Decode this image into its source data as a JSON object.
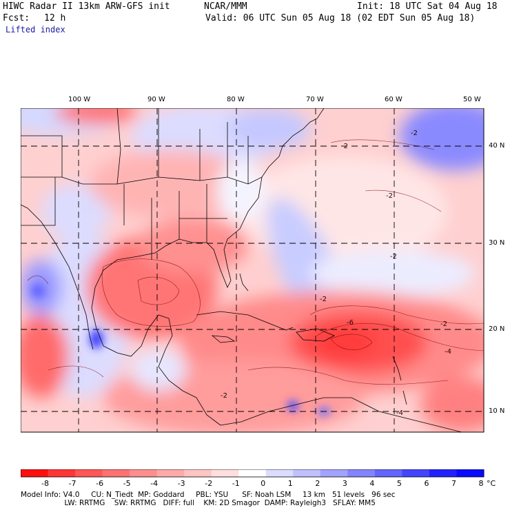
{
  "header": {
    "model": "HIWC Radar II 13km ARW-GFS init",
    "org": "NCAR/MMM",
    "init": "Init: 18 UTC Sat 04 Aug 18",
    "fcst_label": "Fcst:",
    "fcst_value": "12 h",
    "valid": "Valid: 06 UTC Sun 05 Aug 18 (02 EDT Sun 05 Aug 18)",
    "field": "Lifted index"
  },
  "map": {
    "lon_labels": [
      "100 W",
      "90 W",
      "80 W",
      "70 W",
      "60 W",
      "50 W"
    ],
    "lat_labels": [
      "40 N",
      "30 N",
      "20 N",
      "10 N"
    ],
    "contour_labels": [
      "-2",
      "-2",
      "-2",
      "-2",
      "-2",
      "-4",
      "-6",
      "-2",
      "-4",
      "-2"
    ]
  },
  "colorbar": {
    "labels": [
      "-8",
      "-7",
      "-6",
      "-5",
      "-4",
      "-3",
      "-2",
      "-1",
      "0",
      "1",
      "2",
      "3",
      "4",
      "5",
      "6",
      "7",
      "8"
    ],
    "unit": "°C",
    "colors": [
      "#ff1010",
      "#ff3636",
      "#ff5656",
      "#ff7272",
      "#ff8e8e",
      "#ffaaaa",
      "#ffc4c4",
      "#ffdede",
      "#ffffff",
      "#dcdcff",
      "#c0c0ff",
      "#a2a2ff",
      "#8484ff",
      "#6464ff",
      "#4444ff",
      "#2222ff",
      "#0a0aff"
    ]
  },
  "footer": {
    "line1": "Model Info: V4.0     CU: N_Tiedt  MP: Goddard     PBL: YSU      SF: Noah LSM     13 km   51 levels   96 sec",
    "line2": "                   LW: RRTMG    SW: RRTMG   DIFF: full    KM: 2D Smagor  DAMP: Rayleigh3   SFLAY: MM5"
  }
}
